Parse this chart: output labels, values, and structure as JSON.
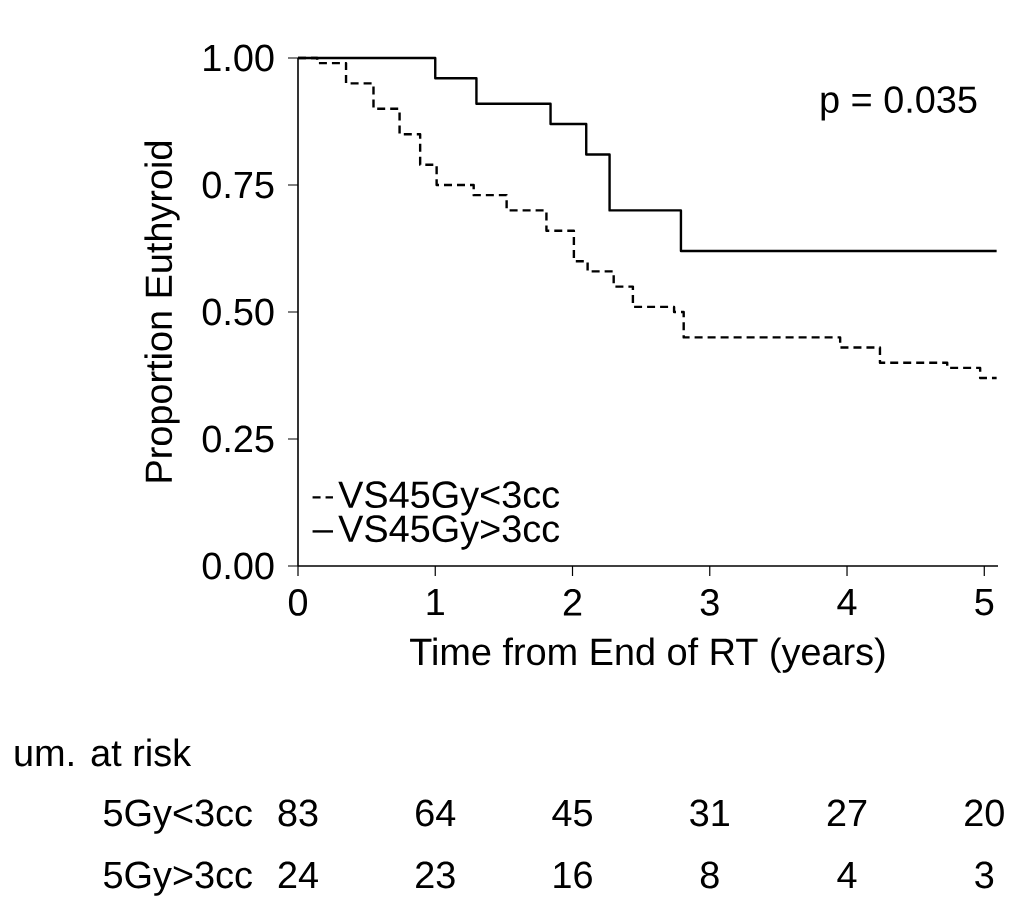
{
  "chart_data": {
    "type": "step",
    "xlabel": "Time from End of RT (years)",
    "ylabel": "Proportion Euthyroid",
    "xlim": [
      0,
      5.1
    ],
    "ylim": [
      0,
      1.0
    ],
    "xticks": [
      0,
      1,
      2,
      3,
      4,
      5
    ],
    "yticks": [
      {
        "value": 0,
        "label": "0.00"
      },
      {
        "value": 0.25,
        "label": "0.25"
      },
      {
        "value": 0.5,
        "label": "0.50"
      },
      {
        "value": 0.75,
        "label": "0.75"
      },
      {
        "value": 1.0,
        "label": "1.00"
      }
    ],
    "legend": "bottom left",
    "grid": false,
    "series": [
      {
        "name": "VS45Gy<3cc",
        "color": "#000000",
        "line_style": "dashed",
        "x": [
          0,
          0.14,
          0.35,
          0.55,
          0.74,
          0.89,
          1.01,
          1.28,
          1.52,
          1.81,
          2.01,
          2.11,
          2.3,
          2.44,
          2.74,
          2.81,
          3.95,
          4.24,
          4.73,
          4.97,
          5.09
        ],
        "values": [
          1.0,
          0.99,
          0.95,
          0.9,
          0.85,
          0.79,
          0.75,
          0.73,
          0.7,
          0.66,
          0.6,
          0.58,
          0.55,
          0.51,
          0.5,
          0.45,
          0.43,
          0.4,
          0.39,
          0.37,
          0.37
        ]
      },
      {
        "name": "VS45Gy>3cc",
        "color": "#000000",
        "line_style": "solid",
        "x": [
          0,
          1.0,
          1.3,
          1.84,
          2.1,
          2.27,
          2.79,
          5.09
        ],
        "values": [
          1.0,
          0.96,
          0.91,
          0.87,
          0.81,
          0.7,
          0.62,
          0.62
        ]
      }
    ],
    "annotations": [
      "p = 0.035",
      "um. at risk",
      "5Gy<3cc",
      "83",
      "64",
      "45",
      "31",
      "27",
      "20",
      "5Gy>3cc",
      "24",
      "23",
      "16",
      "8",
      "4",
      "3"
    ]
  }
}
